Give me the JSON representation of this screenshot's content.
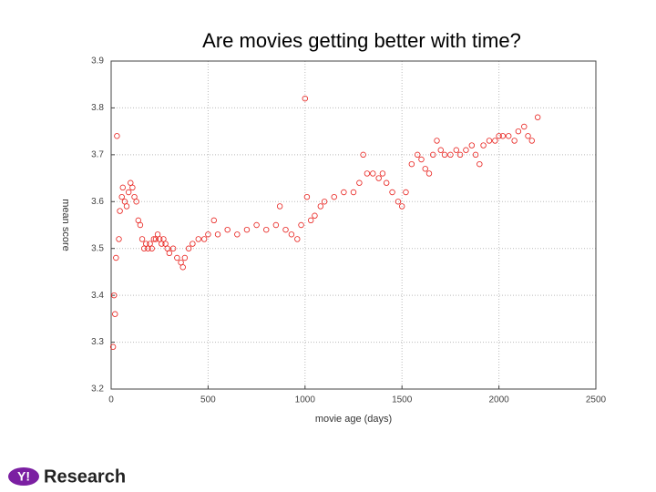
{
  "chart_data": {
    "type": "scatter",
    "title": "Are movies getting better with time?",
    "xlabel": "movie age (days)",
    "ylabel": "mean score",
    "color": "#e8201c",
    "grid": true,
    "xlim": [
      0,
      2500
    ],
    "xticks": [
      0,
      500,
      1000,
      1500,
      2000,
      2500
    ],
    "ylim": [
      3.2,
      3.9
    ],
    "yticks": [
      3.2,
      3.3,
      3.4,
      3.5,
      3.6,
      3.7,
      3.8,
      3.9
    ],
    "x": [
      10,
      15,
      20,
      25,
      30,
      40,
      45,
      55,
      60,
      70,
      80,
      90,
      100,
      110,
      120,
      130,
      140,
      150,
      160,
      170,
      180,
      190,
      200,
      210,
      220,
      230,
      240,
      250,
      260,
      270,
      280,
      290,
      300,
      320,
      340,
      360,
      370,
      380,
      400,
      420,
      450,
      480,
      500,
      530,
      550,
      600,
      650,
      700,
      750,
      800,
      850,
      870,
      900,
      930,
      960,
      980,
      1000,
      1010,
      1030,
      1050,
      1080,
      1100,
      1150,
      1200,
      1250,
      1280,
      1300,
      1320,
      1350,
      1380,
      1400,
      1420,
      1450,
      1480,
      1500,
      1520,
      1550,
      1580,
      1600,
      1620,
      1640,
      1660,
      1680,
      1700,
      1720,
      1750,
      1780,
      1800,
      1830,
      1860,
      1880,
      1900,
      1920,
      1950,
      1980,
      2000,
      2020,
      2050,
      2080,
      2100,
      2130,
      2150,
      2170,
      2200
    ],
    "values": [
      3.29,
      3.4,
      3.36,
      3.48,
      3.74,
      3.52,
      3.58,
      3.61,
      3.63,
      3.6,
      3.59,
      3.62,
      3.64,
      3.63,
      3.61,
      3.6,
      3.56,
      3.55,
      3.52,
      3.5,
      3.51,
      3.5,
      3.51,
      3.5,
      3.52,
      3.52,
      3.53,
      3.52,
      3.51,
      3.52,
      3.51,
      3.5,
      3.49,
      3.5,
      3.48,
      3.47,
      3.46,
      3.48,
      3.5,
      3.51,
      3.52,
      3.52,
      3.53,
      3.56,
      3.53,
      3.54,
      3.53,
      3.54,
      3.55,
      3.54,
      3.55,
      3.59,
      3.54,
      3.53,
      3.52,
      3.55,
      3.82,
      3.61,
      3.56,
      3.57,
      3.59,
      3.6,
      3.61,
      3.62,
      3.62,
      3.64,
      3.7,
      3.66,
      3.66,
      3.65,
      3.66,
      3.64,
      3.62,
      3.6,
      3.59,
      3.62,
      3.68,
      3.7,
      3.69,
      3.67,
      3.66,
      3.7,
      3.73,
      3.71,
      3.7,
      3.7,
      3.71,
      3.7,
      3.71,
      3.72,
      3.7,
      3.68,
      3.72,
      3.73,
      3.73,
      3.74,
      3.74,
      3.74,
      3.73,
      3.75,
      3.76,
      3.74,
      3.73,
      3.78
    ]
  },
  "logo": {
    "mark": "Y!",
    "text": "Research"
  }
}
